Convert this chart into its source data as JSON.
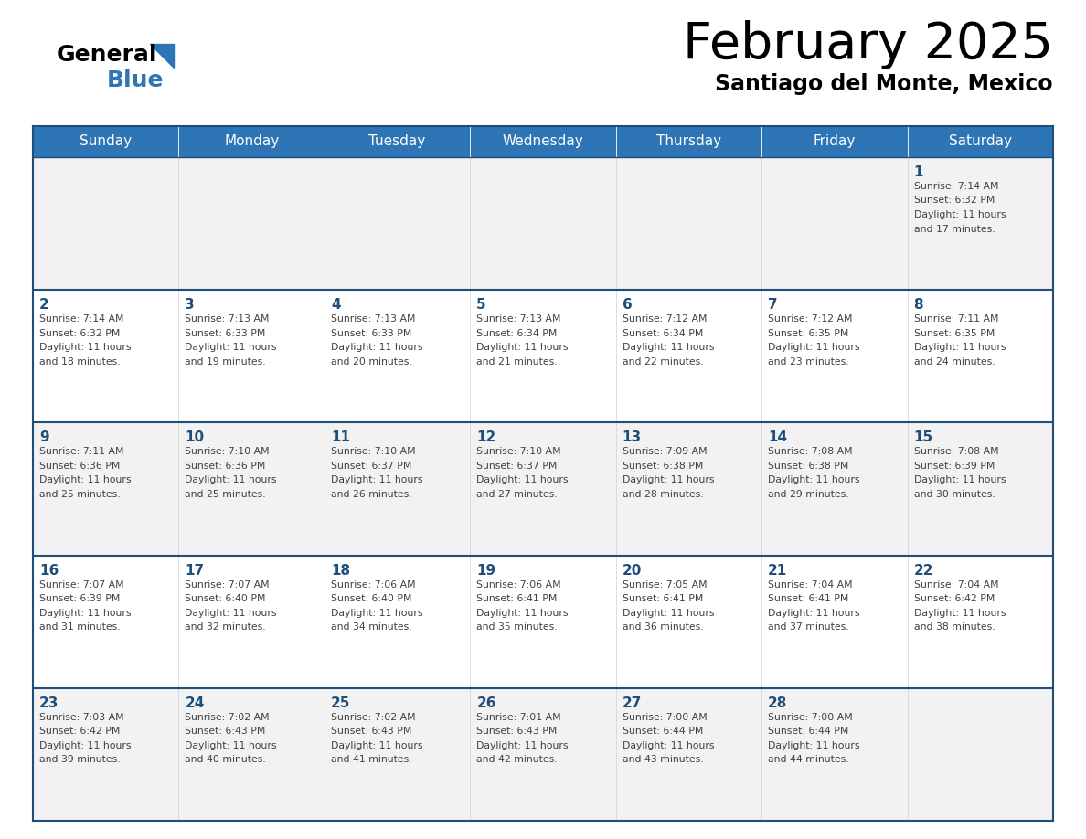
{
  "title": "February 2025",
  "subtitle": "Santiago del Monte, Mexico",
  "header_color": "#2e75b6",
  "header_text_color": "#ffffff",
  "cell_bg_light": "#f2f2f2",
  "cell_bg_white": "#ffffff",
  "border_color": "#1f4e79",
  "day_number_color": "#1f4e79",
  "text_color": "#404040",
  "days_of_week": [
    "Sunday",
    "Monday",
    "Tuesday",
    "Wednesday",
    "Thursday",
    "Friday",
    "Saturday"
  ],
  "calendar_data": [
    [
      null,
      null,
      null,
      null,
      null,
      null,
      {
        "day": 1,
        "sunrise": "7:14 AM",
        "sunset": "6:32 PM",
        "daylight": "11 hours and 17 minutes."
      }
    ],
    [
      {
        "day": 2,
        "sunrise": "7:14 AM",
        "sunset": "6:32 PM",
        "daylight": "11 hours and 18 minutes."
      },
      {
        "day": 3,
        "sunrise": "7:13 AM",
        "sunset": "6:33 PM",
        "daylight": "11 hours and 19 minutes."
      },
      {
        "day": 4,
        "sunrise": "7:13 AM",
        "sunset": "6:33 PM",
        "daylight": "11 hours and 20 minutes."
      },
      {
        "day": 5,
        "sunrise": "7:13 AM",
        "sunset": "6:34 PM",
        "daylight": "11 hours and 21 minutes."
      },
      {
        "day": 6,
        "sunrise": "7:12 AM",
        "sunset": "6:34 PM",
        "daylight": "11 hours and 22 minutes."
      },
      {
        "day": 7,
        "sunrise": "7:12 AM",
        "sunset": "6:35 PM",
        "daylight": "11 hours and 23 minutes."
      },
      {
        "day": 8,
        "sunrise": "7:11 AM",
        "sunset": "6:35 PM",
        "daylight": "11 hours and 24 minutes."
      }
    ],
    [
      {
        "day": 9,
        "sunrise": "7:11 AM",
        "sunset": "6:36 PM",
        "daylight": "11 hours and 25 minutes."
      },
      {
        "day": 10,
        "sunrise": "7:10 AM",
        "sunset": "6:36 PM",
        "daylight": "11 hours and 25 minutes."
      },
      {
        "day": 11,
        "sunrise": "7:10 AM",
        "sunset": "6:37 PM",
        "daylight": "11 hours and 26 minutes."
      },
      {
        "day": 12,
        "sunrise": "7:10 AM",
        "sunset": "6:37 PM",
        "daylight": "11 hours and 27 minutes."
      },
      {
        "day": 13,
        "sunrise": "7:09 AM",
        "sunset": "6:38 PM",
        "daylight": "11 hours and 28 minutes."
      },
      {
        "day": 14,
        "sunrise": "7:08 AM",
        "sunset": "6:38 PM",
        "daylight": "11 hours and 29 minutes."
      },
      {
        "day": 15,
        "sunrise": "7:08 AM",
        "sunset": "6:39 PM",
        "daylight": "11 hours and 30 minutes."
      }
    ],
    [
      {
        "day": 16,
        "sunrise": "7:07 AM",
        "sunset": "6:39 PM",
        "daylight": "11 hours and 31 minutes."
      },
      {
        "day": 17,
        "sunrise": "7:07 AM",
        "sunset": "6:40 PM",
        "daylight": "11 hours and 32 minutes."
      },
      {
        "day": 18,
        "sunrise": "7:06 AM",
        "sunset": "6:40 PM",
        "daylight": "11 hours and 34 minutes."
      },
      {
        "day": 19,
        "sunrise": "7:06 AM",
        "sunset": "6:41 PM",
        "daylight": "11 hours and 35 minutes."
      },
      {
        "day": 20,
        "sunrise": "7:05 AM",
        "sunset": "6:41 PM",
        "daylight": "11 hours and 36 minutes."
      },
      {
        "day": 21,
        "sunrise": "7:04 AM",
        "sunset": "6:41 PM",
        "daylight": "11 hours and 37 minutes."
      },
      {
        "day": 22,
        "sunrise": "7:04 AM",
        "sunset": "6:42 PM",
        "daylight": "11 hours and 38 minutes."
      }
    ],
    [
      {
        "day": 23,
        "sunrise": "7:03 AM",
        "sunset": "6:42 PM",
        "daylight": "11 hours and 39 minutes."
      },
      {
        "day": 24,
        "sunrise": "7:02 AM",
        "sunset": "6:43 PM",
        "daylight": "11 hours and 40 minutes."
      },
      {
        "day": 25,
        "sunrise": "7:02 AM",
        "sunset": "6:43 PM",
        "daylight": "11 hours and 41 minutes."
      },
      {
        "day": 26,
        "sunrise": "7:01 AM",
        "sunset": "6:43 PM",
        "daylight": "11 hours and 42 minutes."
      },
      {
        "day": 27,
        "sunrise": "7:00 AM",
        "sunset": "6:44 PM",
        "daylight": "11 hours and 43 minutes."
      },
      {
        "day": 28,
        "sunrise": "7:00 AM",
        "sunset": "6:44 PM",
        "daylight": "11 hours and 44 minutes."
      },
      null
    ]
  ],
  "fig_width": 11.88,
  "fig_height": 9.18,
  "dpi": 100
}
